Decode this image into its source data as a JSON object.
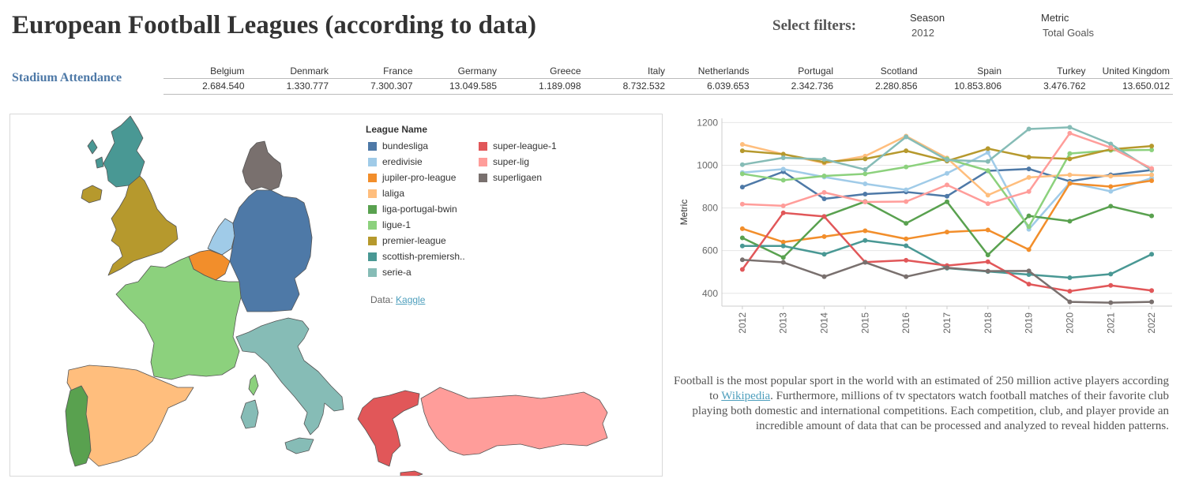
{
  "header": {
    "title": "European Football Leagues (according to data)",
    "filters_label": "Select filters:",
    "filters": [
      {
        "label": "Season",
        "value": "2012"
      },
      {
        "label": "Metric",
        "value": "Total Goals"
      }
    ]
  },
  "attendance": {
    "label": "Stadium Attendance",
    "columns": [
      "Belgium",
      "Denmark",
      "France",
      "Germany",
      "Greece",
      "Italy",
      "Netherlands",
      "Portugal",
      "Scotland",
      "Spain",
      "Turkey",
      "United Kingdom"
    ],
    "values": [
      "2.684.540",
      "1.330.777",
      "7.300.307",
      "13.049.585",
      "1.189.098",
      "8.732.532",
      "6.039.653",
      "2.342.736",
      "2.280.856",
      "10.853.806",
      "3.476.762",
      "13.650.012"
    ]
  },
  "map": {
    "legend_title": "League Name",
    "legend_left": [
      {
        "name": "bundesliga",
        "color": "#4e79a7"
      },
      {
        "name": "eredivisie",
        "color": "#a0cbe8"
      },
      {
        "name": "jupiler-pro-league",
        "color": "#f28e2b"
      },
      {
        "name": "laliga",
        "color": "#ffbe7d"
      },
      {
        "name": "liga-portugal-bwin",
        "color": "#59a14f"
      },
      {
        "name": "ligue-1",
        "color": "#8cd17d"
      },
      {
        "name": "premier-league",
        "color": "#b6992d"
      },
      {
        "name": "scottish-premiersh..",
        "color": "#499894"
      },
      {
        "name": "serie-a",
        "color": "#86bcb6"
      }
    ],
    "legend_right": [
      {
        "name": "super-league-1",
        "color": "#e15759"
      },
      {
        "name": "super-lig",
        "color": "#ff9d9a"
      },
      {
        "name": "superligaen",
        "color": "#79706e"
      }
    ],
    "data_label": "Data:",
    "data_link": "Kaggle"
  },
  "chart_data": {
    "type": "line",
    "ylabel": "Metric",
    "x": [
      "2012",
      "2013",
      "2014",
      "2015",
      "2016",
      "2017",
      "2018",
      "2019",
      "2020",
      "2021",
      "2022"
    ],
    "ylim": [
      340,
      1220
    ],
    "yticks": [
      400,
      600,
      800,
      1000,
      1200
    ],
    "grid": true,
    "series": [
      {
        "name": "bundesliga",
        "color": "#4e79a7",
        "values": [
          898,
          970,
          843,
          865,
          875,
          855,
          974,
          983,
          925,
          955,
          978
        ]
      },
      {
        "name": "eredivisie",
        "color": "#a0cbe8",
        "values": [
          966,
          982,
          945,
          913,
          885,
          962,
          1060,
          700,
          918,
          878,
          940
        ]
      },
      {
        "name": "jupiler-pro-league",
        "color": "#f28e2b",
        "values": [
          703,
          640,
          666,
          693,
          655,
          687,
          697,
          605,
          915,
          900,
          928
        ]
      },
      {
        "name": "laliga",
        "color": "#ffbe7d",
        "values": [
          1098,
          1052,
          1010,
          1043,
          1137,
          1034,
          860,
          943,
          955,
          949,
          955
        ]
      },
      {
        "name": "liga-portugal-bwin",
        "color": "#59a14f",
        "values": [
          660,
          568,
          760,
          830,
          728,
          829,
          580,
          763,
          738,
          808,
          763
        ]
      },
      {
        "name": "ligue-1",
        "color": "#8cd17d",
        "values": [
          960,
          930,
          950,
          960,
          992,
          1030,
          975,
          712,
          1055,
          1070,
          1072
        ]
      },
      {
        "name": "premier-league",
        "color": "#b6992d",
        "values": [
          1068,
          1052,
          1015,
          1030,
          1068,
          1020,
          1078,
          1038,
          1030,
          1075,
          1090
        ]
      },
      {
        "name": "scottish-premiersh..",
        "color": "#499894",
        "values": [
          622,
          622,
          583,
          648,
          623,
          518,
          502,
          488,
          473,
          490,
          583
        ]
      },
      {
        "name": "serie-a",
        "color": "#86bcb6",
        "values": [
          1003,
          1035,
          1028,
          980,
          1133,
          1025,
          1018,
          1170,
          1178,
          1100,
          977
        ]
      },
      {
        "name": "super-league-1",
        "color": "#e15759",
        "values": [
          512,
          777,
          760,
          546,
          555,
          530,
          548,
          443,
          410,
          437,
          413
        ]
      },
      {
        "name": "super-lig",
        "color": "#ff9d9a",
        "values": [
          818,
          810,
          873,
          828,
          830,
          908,
          820,
          877,
          1150,
          1083,
          985
        ]
      },
      {
        "name": "superligaen",
        "color": "#79706e",
        "values": [
          557,
          545,
          478,
          545,
          478,
          520,
          504,
          505,
          360,
          356,
          360
        ]
      }
    ]
  },
  "description": {
    "text_before": "Football is the most popular sport in the world with an estimated of 250 million active players according to ",
    "link": "Wikipedia",
    "text_after": ". Furthermore, millions of tv spectators watch football matches of their favorite club playing both domestic and international competitions. Each competition, club, and player provide an incredible amount of data that can be processed and analyzed to reveal hidden patterns."
  }
}
